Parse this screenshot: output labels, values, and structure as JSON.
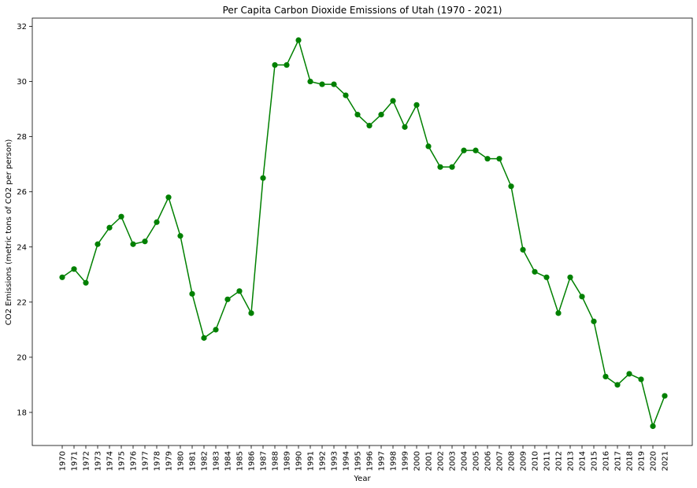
{
  "chart_data": {
    "type": "line",
    "title": "Per Capita Carbon Dioxide Emissions of Utah (1970 - 2021)",
    "xlabel": "Year",
    "ylabel": "CO2 Emissions (metric tons of CO2 per person)",
    "categories": [
      "1970",
      "1971",
      "1972",
      "1973",
      "1974",
      "1975",
      "1976",
      "1977",
      "1978",
      "1979",
      "1980",
      "1981",
      "1982",
      "1983",
      "1984",
      "1985",
      "1986",
      "1987",
      "1988",
      "1989",
      "1990",
      "1991",
      "1992",
      "1993",
      "1994",
      "1995",
      "1996",
      "1997",
      "1998",
      "1999",
      "2000",
      "2001",
      "2002",
      "2003",
      "2004",
      "2005",
      "2006",
      "2007",
      "2008",
      "2009",
      "2010",
      "2011",
      "2012",
      "2013",
      "2014",
      "2015",
      "2016",
      "2017",
      "2018",
      "2019",
      "2020",
      "2021"
    ],
    "series": [
      {
        "values": [
          22.9,
          23.2,
          22.7,
          24.1,
          24.7,
          25.1,
          24.1,
          24.2,
          24.9,
          25.8,
          24.4,
          22.3,
          20.7,
          21.0,
          22.1,
          22.4,
          21.6,
          26.5,
          30.6,
          30.6,
          31.5,
          30.0,
          29.9,
          29.9,
          29.5,
          28.8,
          28.4,
          28.8,
          29.3,
          28.35,
          29.15,
          27.65,
          26.9,
          26.9,
          27.5,
          27.5,
          27.2,
          27.2,
          26.2,
          23.9,
          23.1,
          22.9,
          21.6,
          22.9,
          22.2,
          21.3,
          19.3,
          19.0,
          19.4,
          19.2,
          17.5,
          18.6
        ],
        "color": "#008000"
      }
    ],
    "ylim": [
      16.8,
      32.3
    ],
    "yticks": [
      18,
      20,
      22,
      24,
      26,
      28,
      30,
      32
    ],
    "grid": false,
    "marker": "circle"
  }
}
